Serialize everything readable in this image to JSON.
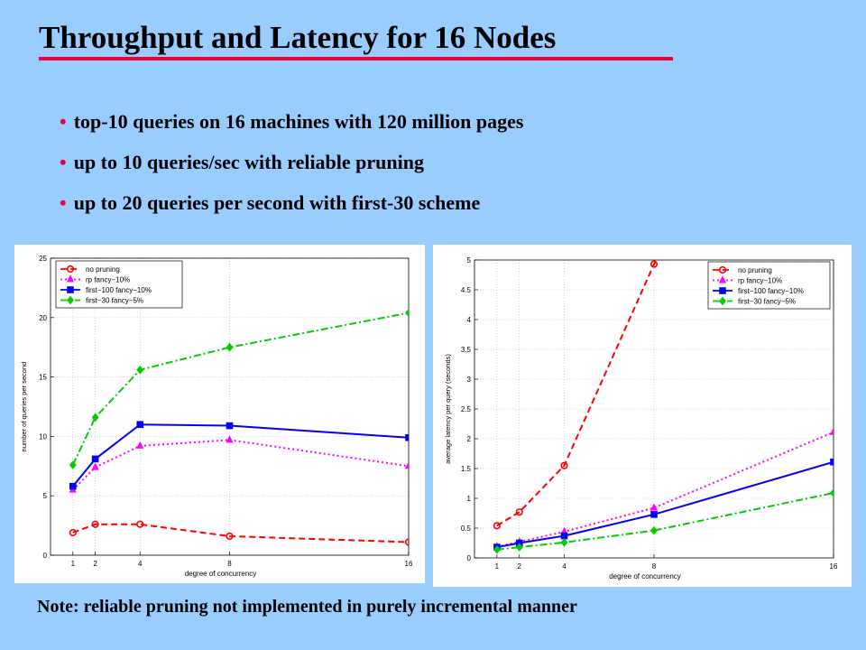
{
  "slide": {
    "title": "Throughput and Latency for 16 Nodes",
    "bullets": [
      "top-10 queries on 16 machines with 120 million pages",
      "up to 10 queries/sec with reliable pruning",
      "up to 20 queries per second with first-30 scheme"
    ],
    "note": "Note: reliable pruning not implemented in purely incremental manner",
    "accent_color": "#e8003a",
    "background_color": "#99ccff"
  },
  "chart_data": [
    {
      "type": "line",
      "title": "",
      "xlabel": "degree of concurrency",
      "ylabel": "number of queries per second",
      "x_ticks": [
        1,
        2,
        4,
        8,
        16
      ],
      "y_ticks": [
        "0",
        "5",
        "10",
        "15",
        "20",
        "25"
      ],
      "xlim": [
        0,
        16
      ],
      "ylim": [
        0,
        25
      ],
      "grid": true,
      "legend_position": "top-left",
      "series": [
        {
          "name": "no pruning",
          "color": "#ff0000",
          "dash": "dashed",
          "marker": "circle",
          "x": [
            1,
            2,
            4,
            8,
            16
          ],
          "y": [
            1.9,
            2.6,
            2.6,
            1.6,
            1.1
          ]
        },
        {
          "name": "rp fancy−10%",
          "color": "#ff00ff",
          "dash": "dotted",
          "marker": "triangle",
          "x": [
            1,
            2,
            4,
            8,
            16
          ],
          "y": [
            5.5,
            7.4,
            9.2,
            9.7,
            7.5
          ]
        },
        {
          "name": "first−100 fancy−10%",
          "color": "#0000ff",
          "dash": "solid",
          "marker": "square",
          "x": [
            1,
            2,
            4,
            8,
            16
          ],
          "y": [
            5.8,
            8.1,
            11.0,
            10.9,
            9.9
          ]
        },
        {
          "name": "first−30 fancy−5%",
          "color": "#00cc00",
          "dash": "dashdot",
          "marker": "diamond",
          "x": [
            1,
            2,
            4,
            8,
            16
          ],
          "y": [
            7.6,
            11.6,
            15.6,
            17.5,
            20.4
          ]
        }
      ]
    },
    {
      "type": "line",
      "title": "",
      "xlabel": "degree of concurrency",
      "ylabel": "average latency per query (seconds)",
      "x_ticks": [
        1,
        2,
        4,
        8,
        16
      ],
      "y_ticks": [
        "0",
        "0.5",
        "1",
        "1.5",
        "2",
        "2.5",
        "3",
        "3.5",
        "4",
        "4.5",
        "5"
      ],
      "xlim": [
        0,
        16
      ],
      "ylim": [
        0,
        5
      ],
      "grid": true,
      "legend_position": "top-right",
      "series": [
        {
          "name": "no pruning",
          "color": "#ff0000",
          "dash": "dashed",
          "marker": "circle",
          "x": [
            1,
            2,
            4,
            8,
            8.3
          ],
          "y": [
            0.54,
            0.77,
            1.55,
            4.93,
            5.1
          ]
        },
        {
          "name": "rp fancy−10%",
          "color": "#ff00ff",
          "dash": "dotted",
          "marker": "triangle",
          "x": [
            1,
            2,
            4,
            8,
            16
          ],
          "y": [
            0.19,
            0.27,
            0.44,
            0.84,
            2.11
          ]
        },
        {
          "name": "first−100 fancy−10%",
          "color": "#0000ff",
          "dash": "solid",
          "marker": "square",
          "x": [
            1,
            2,
            4,
            8,
            16
          ],
          "y": [
            0.18,
            0.25,
            0.37,
            0.73,
            1.61
          ]
        },
        {
          "name": "first−30 fancy−5%",
          "color": "#00cc00",
          "dash": "dashdot",
          "marker": "diamond",
          "x": [
            1,
            2,
            4,
            8,
            16
          ],
          "y": [
            0.14,
            0.18,
            0.26,
            0.46,
            1.09
          ]
        }
      ]
    }
  ]
}
